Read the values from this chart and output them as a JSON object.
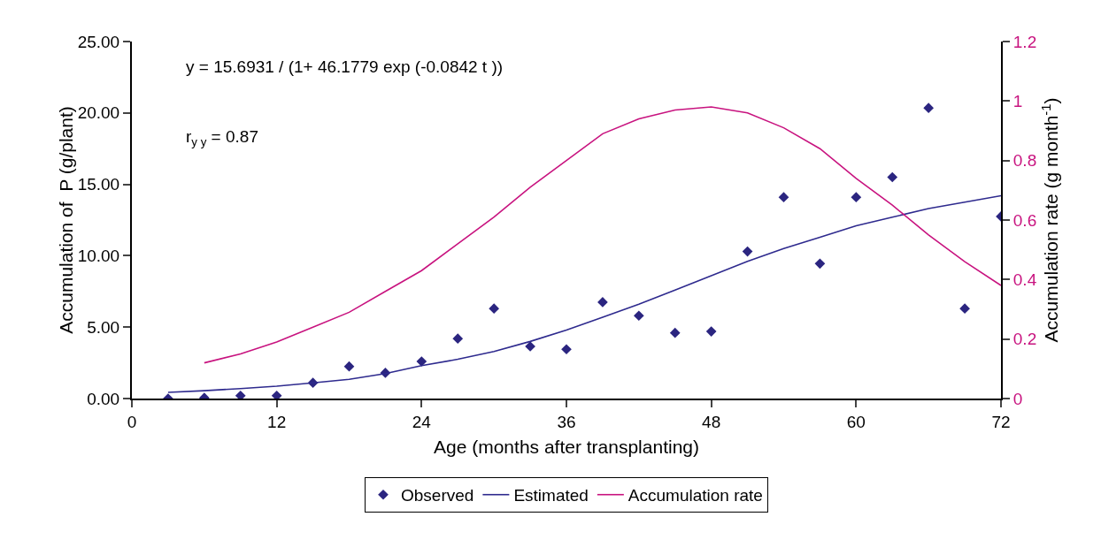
{
  "chart_data": {
    "type": "line",
    "xlabel": "Age (months after transplanting)",
    "ylabel": "Accumulation of  P (g/plant)",
    "y2label": "Accumulation rate (g month$^{-1}$)",
    "annotations": [
      "y = 15.6931 / (1+ 46.1779 exp (-0.0842 t ))",
      "r$_{y y}$ = 0.87"
    ],
    "xlim": [
      0,
      72
    ],
    "xticks": [
      0,
      12,
      24,
      36,
      48,
      60,
      72
    ],
    "ylim": [
      0,
      25
    ],
    "yticks": [
      {
        "value": 0,
        "label": "0.00"
      },
      {
        "value": 5,
        "label": "5.00"
      },
      {
        "value": 10,
        "label": "10.00"
      },
      {
        "value": 15,
        "label": "15.00"
      },
      {
        "value": 20,
        "label": "20.00"
      },
      {
        "value": 25,
        "label": "25.00"
      }
    ],
    "y2lim": [
      0,
      1.2
    ],
    "y2ticks": [
      0,
      0.2,
      0.4,
      0.6,
      0.8,
      1,
      1.2
    ],
    "grid": false,
    "legend": "bottom",
    "series": [
      {
        "name": "Observed",
        "type": "scatter",
        "marker": "diamond",
        "color": "#2b2580",
        "x": [
          3,
          6,
          9,
          12,
          15,
          18,
          21,
          24,
          27,
          30,
          33,
          36,
          39,
          42,
          45,
          48,
          51,
          54,
          57,
          60,
          63,
          66,
          69,
          72
        ],
        "values": [
          0.0,
          0.05,
          0.2,
          0.2,
          1.1,
          2.25,
          1.8,
          2.6,
          4.2,
          6.3,
          3.65,
          3.45,
          6.75,
          5.8,
          4.6,
          4.7,
          10.3,
          14.1,
          9.45,
          14.1,
          15.5,
          20.35,
          6.3,
          12.75
        ]
      },
      {
        "name": "Estimated",
        "marker": "none",
        "color": "#2e2a8e",
        "x": [
          3,
          6,
          9,
          12,
          15,
          18,
          21,
          24,
          27,
          30,
          33,
          36,
          39,
          42,
          45,
          48,
          51,
          54,
          57,
          60,
          63,
          66,
          69,
          72
        ],
        "values": [
          0.43,
          0.55,
          0.7,
          0.87,
          1.1,
          1.35,
          1.75,
          2.3,
          2.75,
          3.3,
          4.0,
          4.8,
          5.7,
          6.6,
          7.6,
          8.6,
          9.6,
          10.5,
          11.3,
          12.1,
          12.7,
          13.3,
          13.75,
          14.2
        ]
      },
      {
        "name": "Accumulation rate",
        "marker": "none",
        "axis": "y2",
        "color": "#c8137f",
        "x": [
          6,
          9,
          12,
          15,
          18,
          21,
          24,
          27,
          30,
          33,
          36,
          39,
          42,
          45,
          48,
          51,
          54,
          57,
          60,
          63,
          66,
          69,
          72
        ],
        "values": [
          0.12,
          0.15,
          0.19,
          0.24,
          0.29,
          0.36,
          0.43,
          0.52,
          0.61,
          0.71,
          0.8,
          0.89,
          0.94,
          0.97,
          0.98,
          0.96,
          0.91,
          0.84,
          0.74,
          0.65,
          0.55,
          0.46,
          0.38
        ]
      }
    ]
  }
}
